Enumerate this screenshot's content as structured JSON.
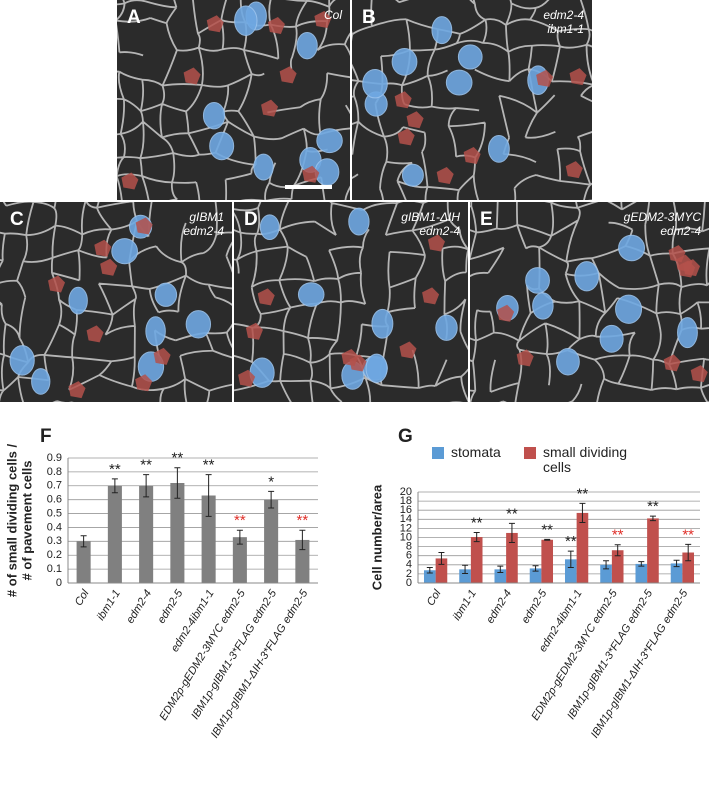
{
  "panels": [
    {
      "letter": "A",
      "label": [
        "Col"
      ]
    },
    {
      "letter": "B",
      "label": [
        "edm2-4",
        "ibm1-1"
      ]
    },
    {
      "letter": "C",
      "label": [
        "gIBM1",
        "edm2-4"
      ]
    },
    {
      "letter": "D",
      "label": [
        "gIBM1-ΔIH",
        "edm2-4"
      ]
    },
    {
      "letter": "E",
      "label": [
        "gEDM2-3MYC",
        "edm2-4"
      ]
    }
  ],
  "chart_data": [
    {
      "type": "bar",
      "letter": "F",
      "ylabel": [
        "# of small dividing cells /",
        "# of pavement cells"
      ],
      "categories": [
        "Col",
        "ibm1-1",
        "edm2-4",
        "edm2-5",
        "edm2-4ibm1-1",
        "EDM2p-gEDM2-3MYC edm2-5",
        "IBM1p-gIBM1-3*FLAG edm2-5",
        "IBM1p-gIBM1-ΔIH-3*FLAG edm2-5"
      ],
      "series": [
        {
          "name": null,
          "color": "#808080",
          "values": [
            0.3,
            0.7,
            0.7,
            0.72,
            0.63,
            0.33,
            0.6,
            0.31
          ],
          "errors": [
            0.04,
            0.05,
            0.08,
            0.11,
            0.15,
            0.05,
            0.06,
            0.07
          ],
          "annotations": [
            null,
            "**",
            "**",
            "**",
            "**",
            "**",
            "*",
            "**"
          ],
          "annotation_colors": [
            null,
            "#222222",
            "#222222",
            "#222222",
            "#222222",
            "#e0302a",
            "#222222",
            "#e0302a"
          ]
        }
      ],
      "ylim": [
        0,
        0.9
      ],
      "yticks": [
        0,
        0.1,
        0.2,
        0.3,
        0.4,
        0.5,
        0.6,
        0.7,
        0.8,
        0.9
      ],
      "grid": true,
      "legend": false
    },
    {
      "type": "bar",
      "letter": "G",
      "ylabel": [
        "Cell number/area"
      ],
      "categories": [
        "Col",
        "ibm1-1",
        "edm2-4",
        "edm2-5",
        "edm2-4ibm1-1",
        "EDM2p-gEDM2-3MYC edm2-5",
        "IBM1p-gIBM1-3*FLAG edm2-5",
        "IBM1p-gIBM1-ΔIH-3*FLAG edm2-5"
      ],
      "series": [
        {
          "name": "stomata",
          "color": "#5b9bd5",
          "values": [
            2.8,
            3.0,
            3.0,
            3.2,
            5.2,
            4.0,
            4.2,
            4.3
          ],
          "errors": [
            0.6,
            0.9,
            0.7,
            0.6,
            1.8,
            0.9,
            0.5,
            0.7
          ],
          "annotations": [
            null,
            null,
            null,
            null,
            "**",
            null,
            null,
            null
          ],
          "annotation_colors": [
            null,
            null,
            null,
            null,
            "#222222",
            null,
            null,
            null
          ]
        },
        {
          "name": "small dividing cells",
          "color": "#c0504d",
          "values": [
            5.4,
            10.1,
            11,
            9.5,
            15.4,
            7.2,
            14.2,
            6.7
          ],
          "errors": [
            1.3,
            1.0,
            2.1,
            0.1,
            2.1,
            1.2,
            0.5,
            1.8
          ],
          "annotations": [
            null,
            "**",
            "**",
            "**",
            "**",
            "**",
            "**",
            "**"
          ],
          "annotation_colors": [
            null,
            "#222222",
            "#222222",
            "#222222",
            "#222222",
            "#e0302a",
            "#222222",
            "#e0302a"
          ]
        }
      ],
      "ylim": [
        0,
        20
      ],
      "yticks": [
        0,
        2,
        4,
        6,
        8,
        10,
        12,
        14,
        16,
        18,
        20
      ],
      "grid": true,
      "legend": "top"
    }
  ]
}
